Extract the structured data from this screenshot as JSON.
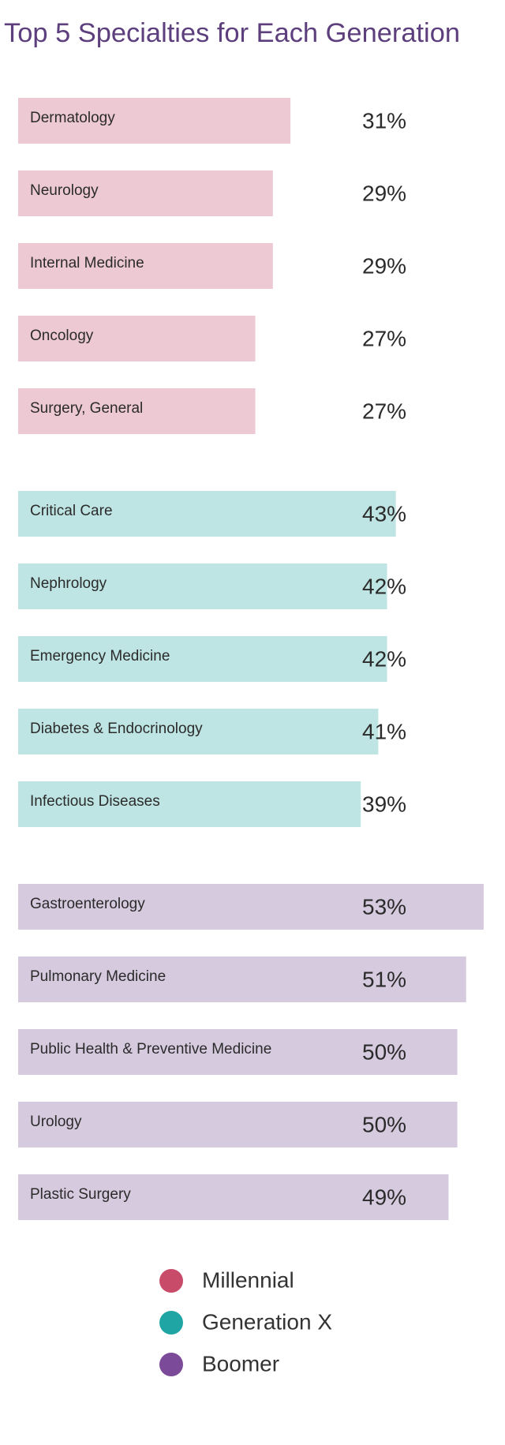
{
  "chart_data": {
    "type": "bar",
    "orientation": "horizontal",
    "title": "Top 5 Specialties for Each Generation",
    "xlim": [
      0,
      53
    ],
    "groups": [
      {
        "name": "Millennial",
        "color": "#edc9d3",
        "legend_color": "#c84b6a",
        "categories": [
          "Dermatology",
          "Neurology",
          "Internal Medicine",
          "Oncology",
          "Surgery, General"
        ],
        "values": [
          31,
          29,
          29,
          27,
          27
        ],
        "value_labels": [
          "31%",
          "29%",
          "29%",
          "27%",
          "27%"
        ]
      },
      {
        "name": "Generation X",
        "color": "#bee5e3",
        "legend_color": "#1fa6a4",
        "categories": [
          "Critical Care",
          "Nephrology",
          "Emergency Medicine",
          "Diabetes & Endocrinology",
          "Infectious Diseases"
        ],
        "values": [
          43,
          42,
          42,
          41,
          39
        ],
        "value_labels": [
          "43%",
          "42%",
          "42%",
          "41%",
          "39%"
        ]
      },
      {
        "name": "Boomer",
        "color": "#d6cadf",
        "legend_color": "#7b4a98",
        "categories": [
          "Gastroenterology",
          "Pulmonary Medicine",
          "Public Health & Preventive Medicine",
          "Urology",
          "Plastic Surgery"
        ],
        "values": [
          53,
          51,
          50,
          50,
          49
        ],
        "value_labels": [
          "53%",
          "51%",
          "50%",
          "50%",
          "49%"
        ]
      }
    ]
  }
}
